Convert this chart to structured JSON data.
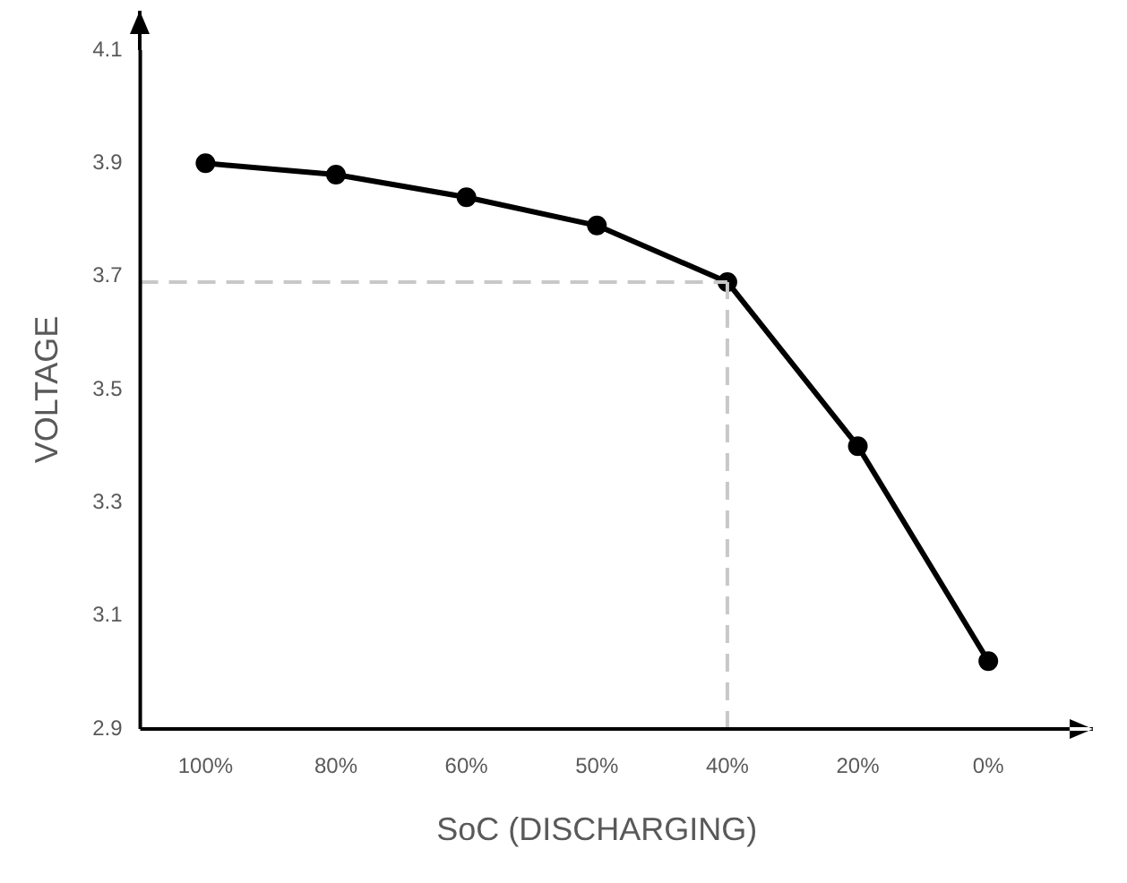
{
  "chart_data": {
    "type": "line",
    "xlabel": "SoC (DISCHARGING)",
    "ylabel": "VOLTAGE",
    "categories": [
      "100%",
      "80%",
      "60%",
      "50%",
      "40%",
      "20%",
      "0%"
    ],
    "series": [
      {
        "color": "#000000",
        "values": [
          3.9,
          3.88,
          3.84,
          3.79,
          3.69,
          3.4,
          3.02
        ]
      }
    ],
    "ylim": [
      2.9,
      4.1
    ],
    "yticks": [
      2.9,
      3.1,
      3.3,
      3.5,
      3.7,
      3.9,
      4.1
    ],
    "ref_lines": [
      {
        "axis": "y",
        "value": 3.69,
        "color": "#c8c8c8",
        "line_style": "dashed"
      },
      {
        "axis": "x",
        "value": "40%",
        "color": "#c8c8c8",
        "line_style": "dashed"
      }
    ],
    "grid": false,
    "legend": false,
    "marker": "circle",
    "line_style": "solid"
  }
}
